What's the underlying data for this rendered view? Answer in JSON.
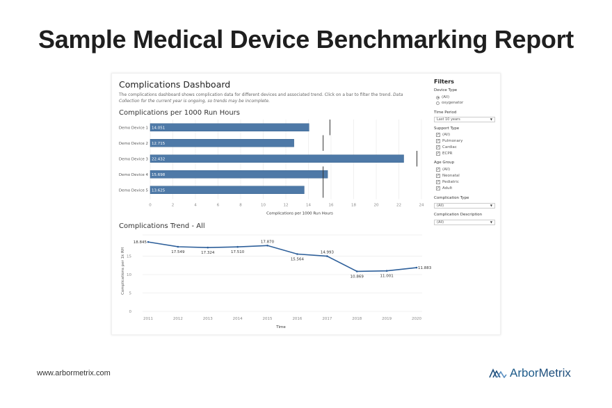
{
  "page": {
    "title": "Sample Medical Device Benchmarking Report",
    "footer_url": "www.arbormetrix.com",
    "brand_name_part1": "Arbor",
    "brand_name_part2": "Metrix"
  },
  "dashboard": {
    "title": "Complications Dashboard",
    "description": "The complications dashboard shows complication data for different devices and associated trend. Click on a bar to filter the trend.",
    "description_italic": "Data Collection for the current year is ongoing, so trends may be incomplete."
  },
  "filters": {
    "title": "Filters",
    "device_type": {
      "label": "Device Type",
      "options": [
        {
          "label": "(All)",
          "selected": true
        },
        {
          "label": "oxygenator",
          "selected": false
        }
      ]
    },
    "time_period": {
      "label": "Time Period",
      "value": "Last 10 years"
    },
    "support_type": {
      "label": "Support Type",
      "options": [
        {
          "label": "(All)",
          "checked": true
        },
        {
          "label": "Pulmonary",
          "checked": true
        },
        {
          "label": "Cardiac",
          "checked": true
        },
        {
          "label": "ECPR",
          "checked": true
        }
      ]
    },
    "age_group": {
      "label": "Age Group",
      "options": [
        {
          "label": "(All)",
          "checked": true
        },
        {
          "label": "Neonatal",
          "checked": true
        },
        {
          "label": "Pediatric",
          "checked": true
        },
        {
          "label": "Adult",
          "checked": true
        }
      ]
    },
    "complication_type": {
      "label": "Complication Type",
      "value": "(All)"
    },
    "complication_description": {
      "label": "Complication Description",
      "value": "(All)"
    }
  },
  "colors": {
    "bar": "#4e79a7",
    "line": "#2d5f9a",
    "ref": "#333333"
  },
  "chart_data": [
    {
      "type": "bar",
      "orientation": "horizontal",
      "title": "Complications per 1000 Run Hours",
      "categories": [
        "Demo Device 1",
        "Demo Device 2",
        "Demo Device 3",
        "Demo Device 4",
        "Demo Device 5"
      ],
      "values": [
        14.051,
        12.715,
        22.432,
        15.698,
        13.625
      ],
      "value_labels": [
        "14.051",
        "12.715",
        "22.432",
        "15.698",
        "13.625"
      ],
      "reference_lines": [
        15.9,
        15.3,
        23.6,
        15.3,
        15.3
      ],
      "xlabel": "Complications per 1000 Run Hours",
      "xlim": [
        0,
        24
      ],
      "xticks": [
        0,
        2,
        4,
        6,
        8,
        10,
        12,
        14,
        16,
        18,
        20,
        22,
        24
      ],
      "grid": true
    },
    {
      "type": "line",
      "title": "Complications Trend - All",
      "x": [
        "2011",
        "2012",
        "2013",
        "2014",
        "2015",
        "2016",
        "2017",
        "2018",
        "2019",
        "2020"
      ],
      "values": [
        18.845,
        17.549,
        17.324,
        17.51,
        17.87,
        15.564,
        14.993,
        10.869,
        11.001,
        11.883
      ],
      "value_labels": [
        "18.845",
        "17.549",
        "17.324",
        "17.510",
        "17.870",
        "15.564",
        "14.993",
        "10.869",
        "11.001",
        "11.883"
      ],
      "xlabel": "Time",
      "ylabel": "Complications per 1k RH",
      "ylim": [
        0,
        20
      ],
      "yticks": [
        0,
        5,
        10,
        15
      ],
      "grid": true
    }
  ]
}
